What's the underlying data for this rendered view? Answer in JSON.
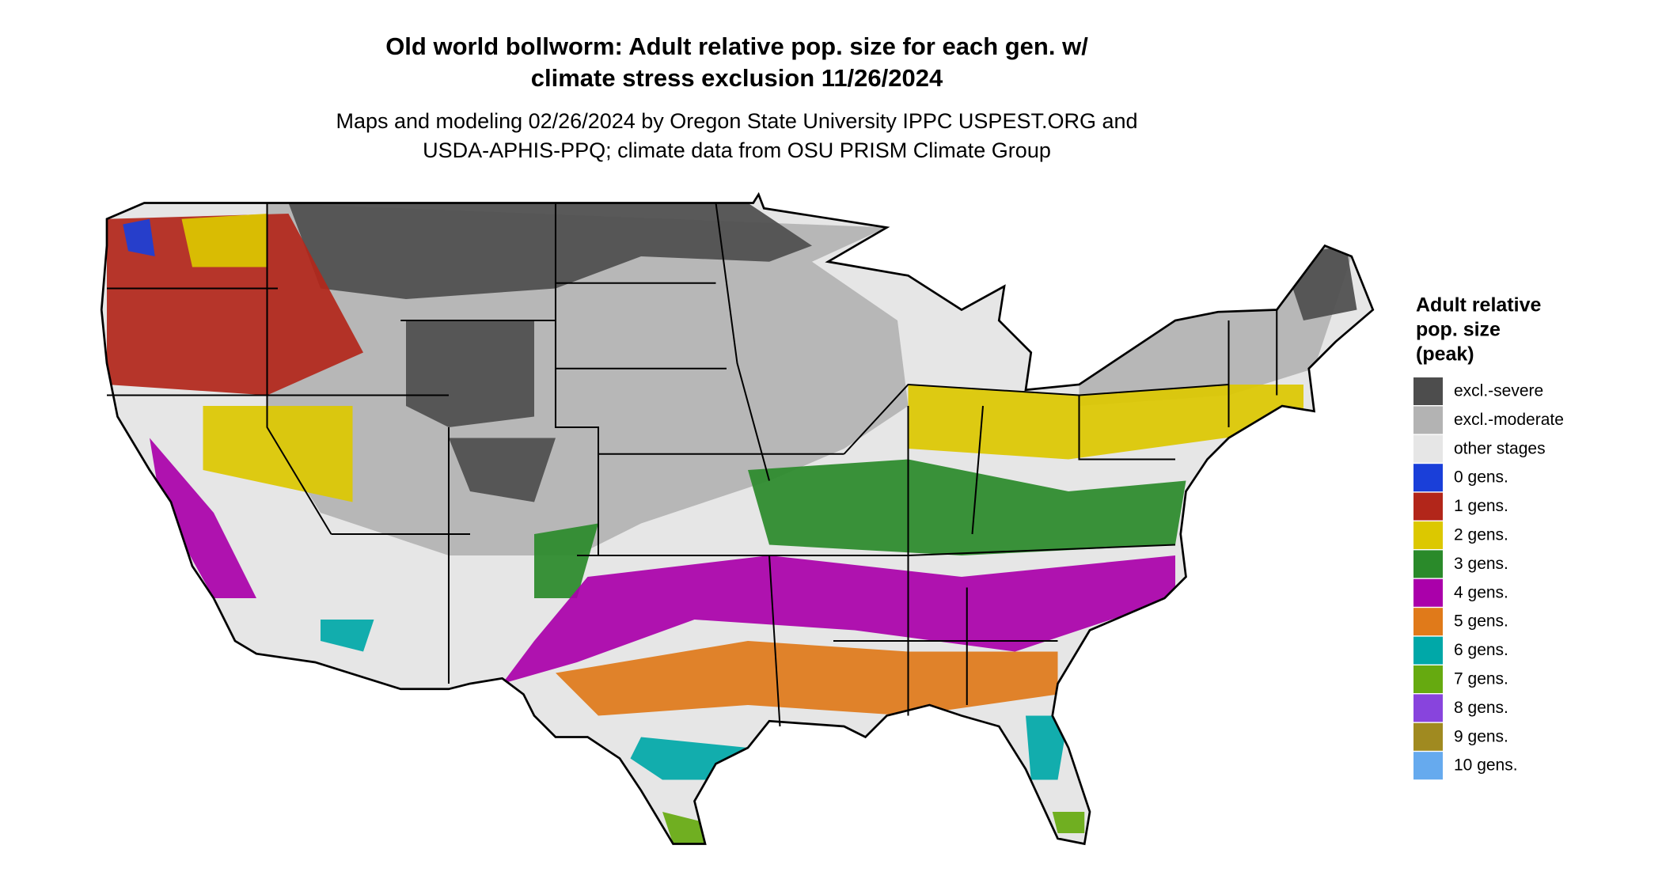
{
  "title": [
    "Old world bollworm: Adult relative pop. size for each gen. w/",
    "climate stress exclusion 11/26/2024"
  ],
  "subtitle": [
    "Maps and modeling 02/26/2024 by Oregon State University IPPC USPEST.ORG and",
    "USDA-APHIS-PPQ; climate data from OSU PRISM Climate Group"
  ],
  "legend": {
    "title": [
      "Adult relative",
      "pop. size",
      "(peak)"
    ],
    "items": [
      {
        "label": "excl.-severe",
        "color": "#4d4d4d"
      },
      {
        "label": "excl.-moderate",
        "color": "#b3b3b3"
      },
      {
        "label": "other stages",
        "color": "#e6e6e6"
      },
      {
        "label": "0 gens.",
        "color": "#1a3fd9"
      },
      {
        "label": "1 gens.",
        "color": "#b2261a"
      },
      {
        "label": "2 gens.",
        "color": "#dcc800"
      },
      {
        "label": "3 gens.",
        "color": "#2a8a2a"
      },
      {
        "label": "4 gens.",
        "color": "#aa00aa"
      },
      {
        "label": "5 gens.",
        "color": "#e07a1a"
      },
      {
        "label": "6 gens.",
        "color": "#00a8a8"
      },
      {
        "label": "7 gens.",
        "color": "#66aa10"
      },
      {
        "label": "8 gens.",
        "color": "#8844dd"
      },
      {
        "label": "9 gens.",
        "color": "#a08a20"
      },
      {
        "label": "10 gens.",
        "color": "#66aaee"
      }
    ]
  }
}
